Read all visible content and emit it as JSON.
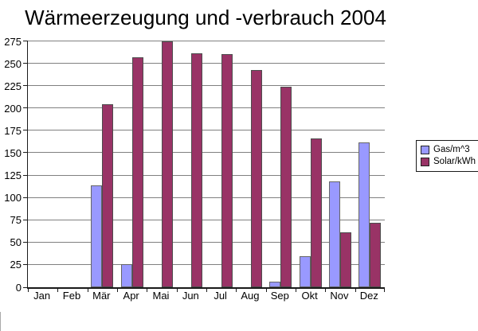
{
  "title": "Wärmeerzeugung und -verbrauch 2004",
  "chart_data": {
    "type": "bar",
    "title": "Wärmeerzeugung und -verbrauch 2004",
    "categories": [
      "Jan",
      "Feb",
      "Mär",
      "Apr",
      "Mai",
      "Jun",
      "Jul",
      "Aug",
      "Sep",
      "Okt",
      "Nov",
      "Dez"
    ],
    "series": [
      {
        "name": "Gas/m^3",
        "color": "#9999FF",
        "border_color": "#666666",
        "values": [
          0,
          0,
          114,
          26,
          0,
          0,
          0,
          0,
          6,
          35,
          118,
          162
        ]
      },
      {
        "name": "Solar/kWh",
        "color": "#993366",
        "border_color": "#4d4d4d",
        "values": [
          0,
          0,
          205,
          257,
          275,
          262,
          261,
          243,
          224,
          166,
          61,
          72
        ]
      }
    ],
    "xlabel": "",
    "ylabel": "",
    "ylim": [
      0,
      275
    ],
    "ytick_step": 25,
    "grid": true,
    "gridline_color": "#808080",
    "axis_color": "#1a1a1a",
    "legend_position": "right"
  }
}
